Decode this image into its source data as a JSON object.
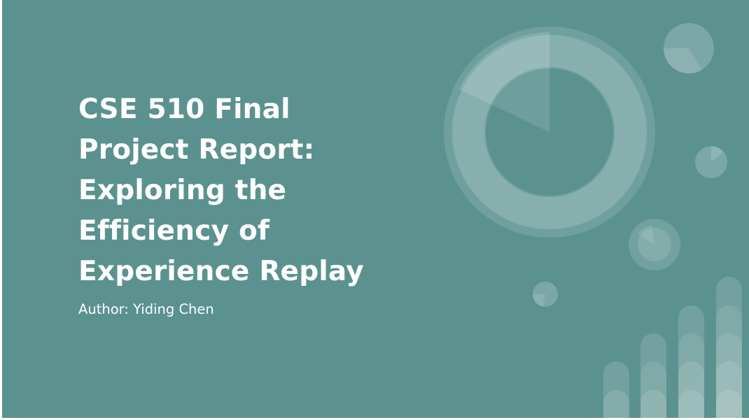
{
  "slide": {
    "title_lines": [
      "CSE 510 Final",
      "Project Report:",
      "Exploring the",
      "Efficiency of",
      "Experience Replay"
    ],
    "subtitle": "Author: Yiding Chen"
  },
  "colors": {
    "background": "#5b9290",
    "text": "#ffffff",
    "decoration": "#ffffff"
  }
}
